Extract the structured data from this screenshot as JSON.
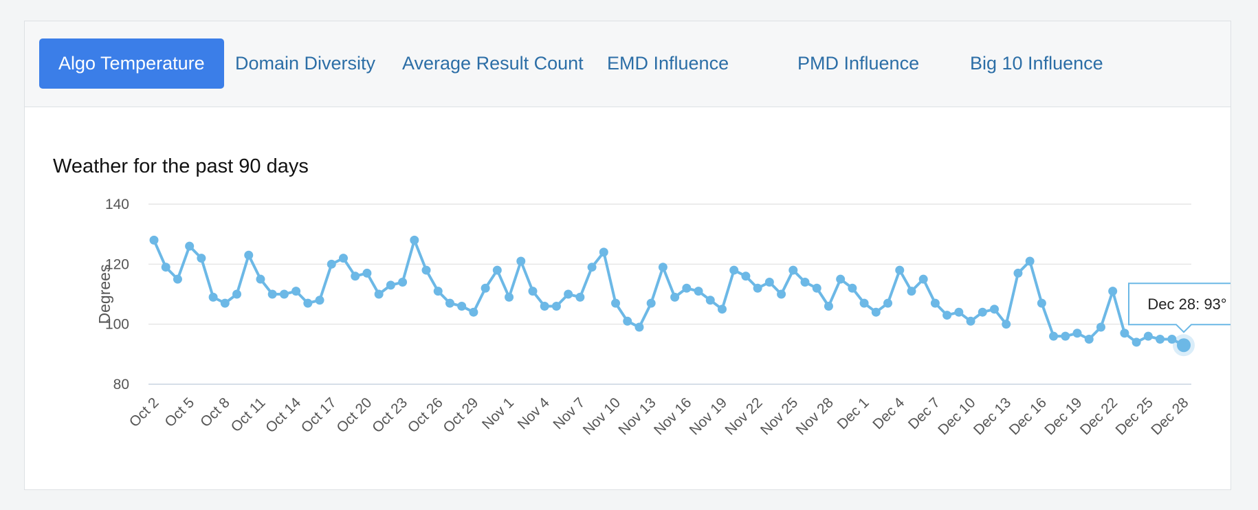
{
  "tabs": [
    "Algo Temperature",
    "Domain Diversity",
    "Average Result Count",
    "EMD Influence",
    "PMD Influence",
    "Big 10 Influence"
  ],
  "chart_data": {
    "type": "line",
    "title": "Weather for the past 90 days",
    "y_label": "Degrees",
    "categories": [
      "Oct 2",
      null,
      null,
      "Oct 5",
      null,
      null,
      "Oct 8",
      null,
      null,
      "Oct 11",
      null,
      null,
      "Oct 14",
      null,
      null,
      "Oct 17",
      null,
      null,
      "Oct 20",
      null,
      null,
      "Oct 23",
      null,
      null,
      "Oct 26",
      null,
      null,
      "Oct 29",
      null,
      null,
      "Nov 1",
      null,
      null,
      "Nov 4",
      null,
      null,
      "Nov 7",
      null,
      null,
      "Nov 10",
      null,
      null,
      "Nov 13",
      null,
      null,
      "Nov 16",
      null,
      null,
      "Nov 19",
      null,
      null,
      "Nov 22",
      null,
      null,
      "Nov 25",
      null,
      null,
      "Nov 28",
      null,
      null,
      "Dec 1",
      null,
      null,
      "Dec 4",
      null,
      null,
      "Dec 7",
      null,
      null,
      "Dec 10",
      null,
      null,
      "Dec 13",
      null,
      null,
      "Dec 16",
      null,
      null,
      "Dec 19",
      null,
      null,
      "Dec 22",
      null,
      null,
      "Dec 25",
      null,
      null,
      "Dec 28"
    ],
    "series": [
      {
        "name": "Temperature",
        "color": "#6cb8e6",
        "values": [
          128,
          119,
          115,
          126,
          122,
          109,
          107,
          110,
          123,
          115,
          110,
          110,
          111,
          107,
          108,
          120,
          122,
          116,
          117,
          110,
          113,
          114,
          128,
          118,
          111,
          107,
          106,
          104,
          112,
          118,
          109,
          121,
          111,
          106,
          106,
          110,
          109,
          119,
          124,
          107,
          101,
          99,
          107,
          119,
          109,
          112,
          111,
          108,
          105,
          118,
          116,
          112,
          114,
          110,
          118,
          114,
          112,
          106,
          115,
          112,
          107,
          104,
          107,
          118,
          111,
          115,
          107,
          103,
          104,
          101,
          104,
          105,
          100,
          117,
          121,
          107,
          96,
          96,
          97,
          95,
          99,
          111,
          97,
          94,
          96,
          95,
          95,
          93
        ]
      }
    ],
    "ylim": [
      80,
      140
    ],
    "yticks": [
      80,
      100,
      120,
      140
    ],
    "grid": true,
    "tooltip": "Dec 28: 93°"
  }
}
